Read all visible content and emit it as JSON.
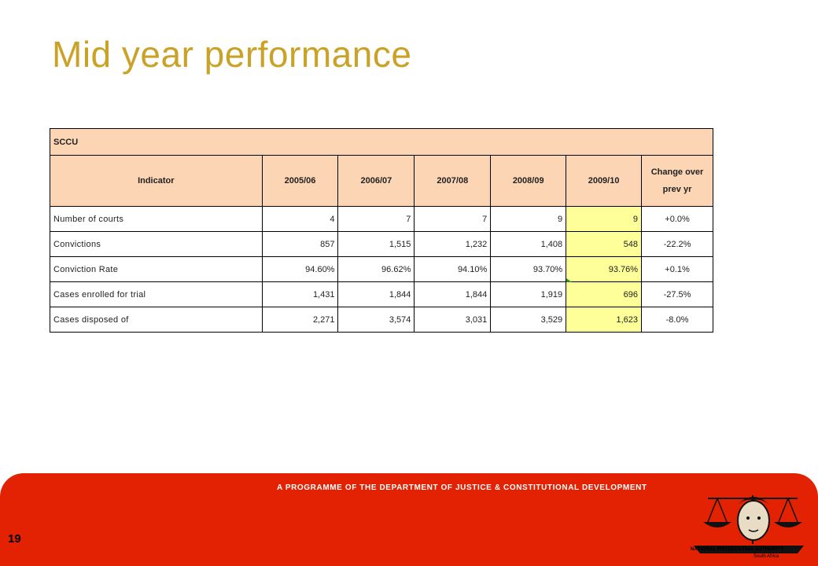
{
  "slide": {
    "title": "Mid year performance",
    "page_number": "19"
  },
  "table": {
    "unit": "SCCU",
    "headers": [
      "Indicator",
      "2005/06",
      "2006/07",
      "2007/08",
      "2008/09",
      "2009/10",
      "Change over prev yr"
    ],
    "rows": [
      {
        "label": "Number of courts",
        "values": [
          "4",
          "7",
          "7",
          "9",
          "9"
        ],
        "change": "+0.0%"
      },
      {
        "label": "Convictions",
        "values": [
          "857",
          "1,515",
          "1,232",
          "1,408",
          "548"
        ],
        "change": "-22.2%"
      },
      {
        "label": "Conviction Rate",
        "values": [
          "94.60%",
          "96.62%",
          "94.10%",
          "93.70%",
          "93.76%"
        ],
        "change": "+0.1%"
      },
      {
        "label": "Cases enrolled for trial",
        "values": [
          "1,431",
          "1,844",
          "1,844",
          "1,919",
          "696"
        ],
        "change": "-27.5%"
      },
      {
        "label": "Cases disposed of",
        "values": [
          "2,271",
          "3,574",
          "3,031",
          "3,529",
          "1,623"
        ],
        "change": "-8.0%"
      }
    ],
    "highlight_color": "#ffff99",
    "header_color": "#fcd5b4"
  },
  "footer": {
    "programme_text": "A PROGRAMME OF THE DEPARTMENT OF JUSTICE & CONSTITUTIONAL DEVELOPMENT",
    "logo_name": "NATIONAL PROSECUTING AUTHORITY",
    "logo_sub": "South Africa",
    "logo_icon": "npa-scales-emblem",
    "background_color": "#e32204"
  },
  "colors": {
    "title": "#c9a227"
  }
}
